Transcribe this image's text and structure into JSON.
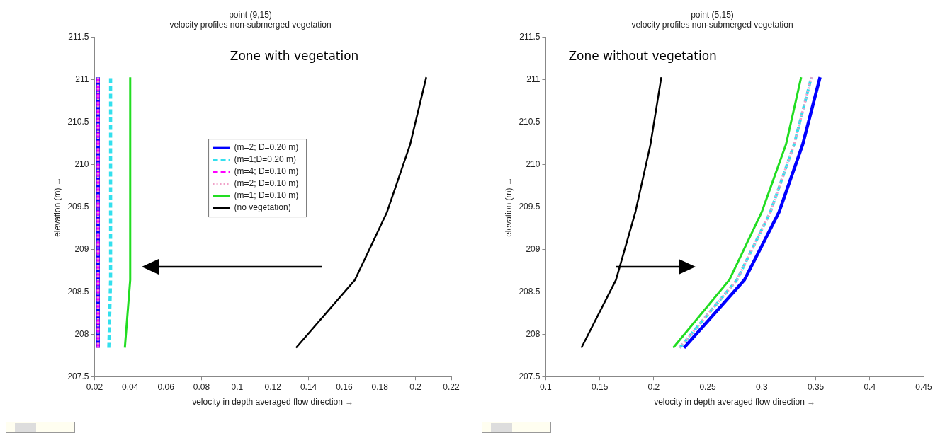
{
  "chart_data": [
    {
      "type": "line",
      "title": "point (9,15)",
      "subtitle": "velocity profiles non-submerged vegetation",
      "xlabel": "velocity in depth averaged flow direction →",
      "ylabel": "elevation (m) →",
      "annotations": [
        "Zone with vegetation"
      ],
      "xlim": [
        0.02,
        0.22
      ],
      "xticks": [
        0.02,
        0.04,
        0.06,
        0.08,
        0.1,
        0.12,
        0.14,
        0.16,
        0.18,
        0.2,
        0.22
      ],
      "ylim": [
        207.5,
        211.5
      ],
      "yticks": [
        207.5,
        208,
        208.5,
        209,
        209.5,
        210,
        210.5,
        211,
        211.5
      ],
      "grid": false,
      "legend": "left",
      "marker": "none",
      "series": [
        {
          "name": "(m=2; D=0.20 m)",
          "color": "#0000ff",
          "line_style": "solid",
          "x": [
            0.022,
            0.022,
            0.022,
            0.022,
            0.022
          ],
          "values": [
            207.84,
            208.64,
            209.44,
            210.24,
            211.03
          ]
        },
        {
          "name": "(m=1;D=0.20 m)",
          "color": "#33e0ee",
          "line_style": "dashed",
          "x": [
            0.028,
            0.029,
            0.029,
            0.029,
            0.029
          ],
          "values": [
            207.84,
            208.64,
            209.44,
            210.24,
            211.03
          ]
        },
        {
          "name": "(m=4; D=0.10 m)",
          "color": "#ff00ff",
          "line_style": "dashed",
          "x": [
            0.022,
            0.022,
            0.022,
            0.022,
            0.022
          ],
          "values": [
            207.84,
            208.64,
            209.44,
            210.24,
            211.03
          ]
        },
        {
          "name": "(m=2; D=0.10 m)",
          "color": "#f0a0c8",
          "line_style": "dotted",
          "x": [
            0.022,
            0.022,
            0.022,
            0.022,
            0.022
          ],
          "values": [
            207.84,
            208.64,
            209.44,
            210.24,
            211.03
          ]
        },
        {
          "name": "(m=1; D=0.10 m)",
          "color": "#22dd22",
          "line_style": "solid",
          "x": [
            0.037,
            0.04,
            0.04,
            0.04,
            0.04
          ],
          "values": [
            207.84,
            208.64,
            209.44,
            210.24,
            211.03
          ]
        },
        {
          "name": "(no vegetation)",
          "color": "#000000",
          "line_style": "solid",
          "x": [
            0.133,
            0.166,
            0.184,
            0.197,
            0.206
          ],
          "values": [
            207.84,
            208.64,
            209.44,
            210.24,
            211.03
          ]
        }
      ]
    },
    {
      "type": "line",
      "title": "point (5,15)",
      "subtitle": "velocity profiles non-submerged vegetation",
      "xlabel": "velocity in depth averaged flow direction →",
      "ylabel": "elevation (m) →",
      "annotations": [
        "Zone without vegetation"
      ],
      "xlim": [
        0.1,
        0.45
      ],
      "xticks": [
        0.1,
        0.15,
        0.2,
        0.25,
        0.3,
        0.35,
        0.4,
        0.45
      ],
      "ylim": [
        207.5,
        211.5
      ],
      "yticks": [
        207.5,
        208,
        208.5,
        209,
        209.5,
        210,
        210.5,
        211,
        211.5
      ],
      "grid": false,
      "marker": "none",
      "series": [
        {
          "color": "#0000ff",
          "line_style": "solid",
          "x": [
            0.228,
            0.284,
            0.316,
            0.338,
            0.354
          ],
          "values": [
            207.84,
            208.64,
            209.44,
            210.24,
            211.03
          ]
        },
        {
          "color": "#33e0ee",
          "line_style": "dashed",
          "x": [
            0.224,
            0.277,
            0.308,
            0.33,
            0.346
          ],
          "values": [
            207.84,
            208.64,
            209.44,
            210.24,
            211.03
          ]
        },
        {
          "color": "#f0a0c8",
          "line_style": "dotted",
          "x": [
            0.224,
            0.277,
            0.308,
            0.33,
            0.346
          ],
          "values": [
            207.84,
            208.64,
            209.44,
            210.24,
            211.03
          ]
        },
        {
          "color": "#22dd22",
          "line_style": "solid",
          "x": [
            0.218,
            0.27,
            0.3,
            0.3225,
            0.3365
          ],
          "values": [
            207.84,
            208.64,
            209.44,
            210.24,
            211.03
          ]
        },
        {
          "color": "#000000",
          "line_style": "solid",
          "x": [
            0.133,
            0.165,
            0.183,
            0.197,
            0.207
          ],
          "values": [
            207.84,
            208.64,
            209.44,
            210.24,
            211.03
          ]
        }
      ]
    }
  ]
}
